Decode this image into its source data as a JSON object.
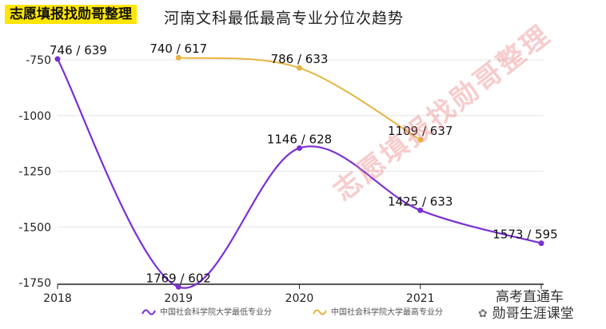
{
  "badge": "志愿填报找勋哥整理",
  "watermark": "志愿填报找勋哥整理",
  "wechat": {
    "line1": "高考直通车",
    "line2": "勋哥生涯课堂"
  },
  "colors": {
    "low": "#7B2FD3",
    "high": "#E6B440",
    "grid": "#e6e6e6",
    "axis": "#222222"
  },
  "chart_data": {
    "type": "line",
    "title": "河南文科最低最高专业分位次趋势",
    "x": [
      2018,
      2019,
      2020,
      2021,
      2022
    ],
    "xticks": [
      "2018",
      "2019",
      "2020",
      "2021",
      ""
    ],
    "ylim": [
      -1750,
      -750
    ],
    "yticks": [
      -750,
      -1000,
      -1250,
      -1500,
      -1750
    ],
    "ytick_labels": [
      "-750",
      "-1000",
      "-1250",
      "-1500",
      "-1750"
    ],
    "series": [
      {
        "name": "中国社会科学院大学最低专业分",
        "color": "#7B2FD3",
        "x": [
          2018,
          2019,
          2020,
          2021,
          2022
        ],
        "y": [
          -746,
          -1769,
          -1146,
          -1425,
          -1573
        ],
        "labels": [
          "746 / 639",
          "1769 / 602",
          "1146 / 628",
          "1425 / 633",
          "1573 / 595"
        ]
      },
      {
        "name": "中国社会科学院大学最高专业分",
        "color": "#E6B440",
        "x": [
          2019,
          2020,
          2021
        ],
        "y": [
          -740,
          -786,
          -1109
        ],
        "labels": [
          "740 / 617",
          "786 / 633",
          "1109 / 637"
        ]
      }
    ]
  }
}
